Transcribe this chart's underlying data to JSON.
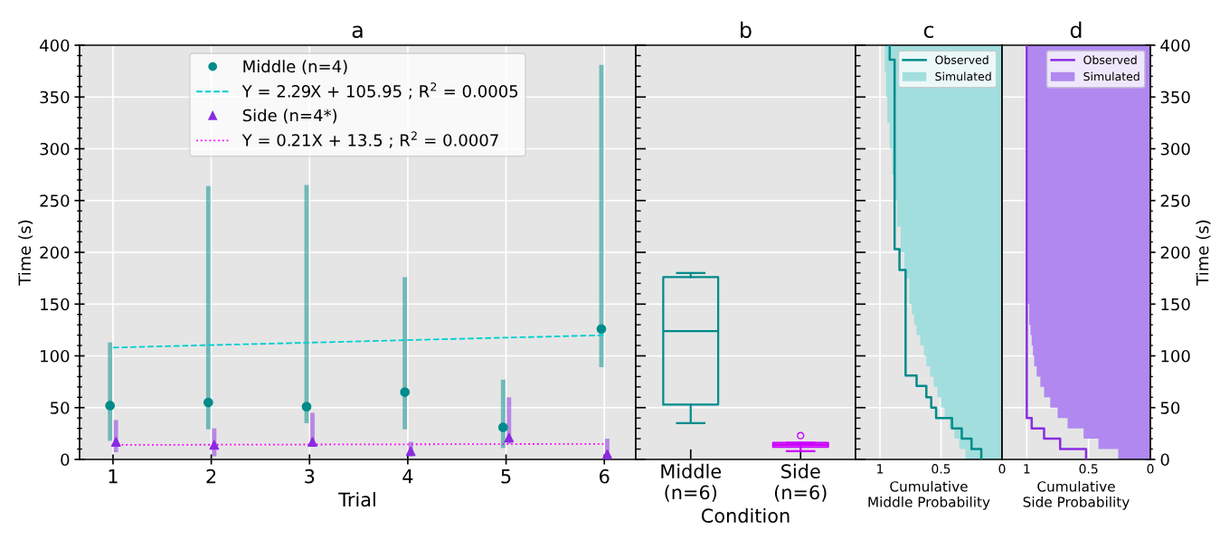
{
  "chart_data": [
    {
      "type": "scatter",
      "title": "a",
      "xlabel": "Trial",
      "ylabel": "Time (s)",
      "xlim": [
        0.66,
        6.32
      ],
      "xticks": [
        1,
        2,
        3,
        4,
        5,
        6
      ],
      "ylim": [
        0,
        400
      ],
      "yticks": [
        0,
        50,
        100,
        150,
        200,
        250,
        300,
        350,
        400
      ],
      "grid": true,
      "legend": "top",
      "series": [
        {
          "name": "Middle (n=4)",
          "type": "scatter",
          "marker": "circle",
          "color": "#008b8b",
          "x": [
            0.97,
            1.97,
            2.97,
            3.97,
            4.97,
            5.97
          ],
          "values": [
            52,
            55,
            51,
            65,
            31,
            126
          ],
          "errors": [
            [
              18,
              113
            ],
            [
              29,
              264
            ],
            [
              35,
              265
            ],
            [
              29,
              176
            ],
            [
              11,
              77
            ],
            [
              89,
              381
            ]
          ]
        },
        {
          "name": "Y = 2.29X + 105.95 ; R$^{2}$ = 0.0005",
          "type": "line",
          "line_style": "dashed",
          "color": "#00ced1",
          "x": [
            1,
            6
          ],
          "values": [
            108,
            120
          ]
        },
        {
          "name": "Side (n=4*)",
          "type": "scatter",
          "marker": "triangle",
          "color": "#8a2be2",
          "x": [
            1.03,
            2.03,
            3.03,
            4.03,
            5.03,
            6.03
          ],
          "values": [
            17,
            14,
            17,
            8,
            21,
            5
          ],
          "errors": [
            [
              7,
              38
            ],
            [
              3,
              30
            ],
            [
              15,
              45
            ],
            [
              3,
              17
            ],
            [
              15,
              60
            ],
            [
              0,
              20
            ]
          ]
        },
        {
          "name": "Y = 0.21X + 13.5 ; R$^{2}$ = 0.0007",
          "type": "line",
          "line_style": "dotted",
          "color": "#ff00ff",
          "x": [
            1,
            6
          ],
          "values": [
            14,
            15
          ]
        }
      ]
    },
    {
      "type": "box",
      "title": "b",
      "xlabel": "Condition",
      "categories": [
        "Middle\n(n=6)",
        "Side\n(n=6)"
      ],
      "ylim": [
        0,
        400
      ],
      "yticks": [
        0,
        50,
        100,
        150,
        200,
        250,
        300,
        350,
        400
      ],
      "grid": "y",
      "tick_labels": "x",
      "colors": [
        "#008b8b",
        "#cc00ff"
      ],
      "boxes": [
        {
          "low": 35,
          "q1": 53,
          "median": 124,
          "q3": 176,
          "high": 180
        },
        {
          "low": 8,
          "q1": 12,
          "median": 14,
          "q3": 16,
          "high": 16,
          "outliers": [
            23
          ]
        }
      ]
    },
    {
      "type": "area",
      "orientation": "horizontal",
      "title": "c",
      "xlabel": "Cumulative\nMiddle Probability",
      "xlim": [
        1.2,
        0
      ],
      "xticks": [
        1,
        0.5,
        0
      ],
      "ylim": [
        0,
        400
      ],
      "yticks": [
        0,
        50,
        100,
        150,
        200,
        250,
        300,
        350,
        400
      ],
      "grid": true,
      "tick_labels": "x",
      "legend": "top right",
      "series": [
        {
          "name": "Observed",
          "type": "step",
          "color": "#008b8b",
          "values": [
            0.17,
            0.25,
            0.33,
            0.41,
            0.54,
            0.58,
            0.62,
            0.7,
            0.79,
            0.84,
            0.88,
            0.92,
            0.92
          ],
          "x": [
            0,
            10,
            20,
            30,
            40,
            50,
            60,
            71,
            81,
            183,
            203,
            386,
            400
          ]
        },
        {
          "name": "Simulated",
          "type": "area",
          "color": "#a2dede",
          "values": [
            0.3,
            0.35,
            0.39,
            0.43,
            0.47,
            0.5,
            0.53,
            0.56,
            0.59,
            0.62,
            0.64,
            0.67,
            0.7,
            0.72,
            0.74,
            0.76,
            0.8,
            0.83,
            0.86,
            0.88,
            0.9,
            0.92,
            0.94,
            0.95,
            0.96,
            0.97
          ],
          "x": [
            0,
            10,
            20,
            30,
            40,
            50,
            60,
            70,
            80,
            90,
            100,
            110,
            120,
            130,
            140,
            150,
            175,
            200,
            225,
            250,
            275,
            300,
            325,
            350,
            375,
            400
          ]
        }
      ]
    },
    {
      "type": "area",
      "orientation": "horizontal",
      "title": "d",
      "xlabel": "Cumulative\nSide Probability",
      "ylabel": "Time (s)",
      "xlim": [
        1.2,
        0
      ],
      "xticks": [
        1,
        0.5,
        0
      ],
      "ylim": [
        0,
        400
      ],
      "yticks": [
        0,
        50,
        100,
        150,
        200,
        250,
        300,
        350,
        400
      ],
      "grid": true,
      "legend": "top right",
      "series": [
        {
          "name": "Observed",
          "type": "step",
          "color": "#8a2be2",
          "values": [
            0.52,
            0.73,
            0.86,
            0.96,
            1.0,
            1.0
          ],
          "x": [
            0,
            10,
            20,
            30,
            40,
            400
          ]
        },
        {
          "name": "Simulated",
          "type": "area",
          "color": "#b088f0",
          "values": [
            0.26,
            0.42,
            0.54,
            0.67,
            0.75,
            0.81,
            0.86,
            0.89,
            0.92,
            0.94,
            0.95,
            0.96,
            0.97,
            0.98,
            0.98,
            0.99,
            0.99,
            1.0
          ],
          "x": [
            0,
            10,
            20,
            30,
            40,
            50,
            60,
            70,
            80,
            90,
            100,
            110,
            120,
            130,
            140,
            150,
            200,
            400
          ]
        }
      ]
    }
  ]
}
